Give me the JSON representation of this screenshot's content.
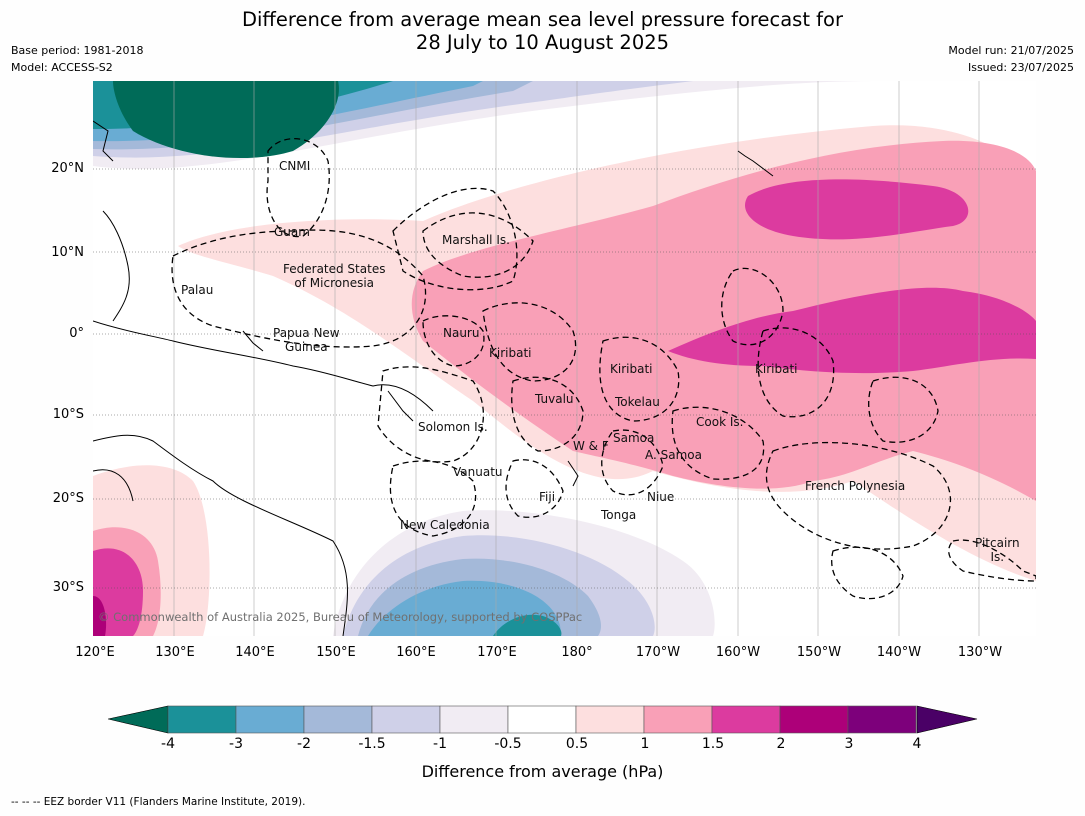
{
  "title": {
    "line1": "Difference from average mean sea level pressure forecast for",
    "line2": "28 July to 10 August 2025"
  },
  "meta_left": {
    "base_period": "Base period: 1981-2018",
    "model": "Model: ACCESS-S2"
  },
  "meta_right": {
    "model_run": "Model run: 21/07/2025",
    "issued": "Issued: 23/07/2025"
  },
  "latitude_labels": [
    "20°N",
    "10°N",
    "0°",
    "10°S",
    "20°S",
    "30°S"
  ],
  "longitude_labels": [
    "120°E",
    "130°E",
    "140°E",
    "150°E",
    "160°E",
    "170°E",
    "180°",
    "170°W",
    "160°W",
    "150°W",
    "140°W",
    "130°W"
  ],
  "regions": {
    "cnmi": "CNMI",
    "guam": "Guam",
    "marshall": "Marshall Is.",
    "fsm_line1": "Federated States",
    "fsm_line2": "of Micronesia",
    "palau": "Palau",
    "png_line1": "Papua New",
    "png_line2": "Guinea",
    "nauru": "Nauru",
    "kiribati_w": "Kiribati",
    "kiribati_c": "Kiribati",
    "kiribati_e": "Kiribati",
    "tuvalu": "Tuvalu",
    "tokelau": "Tokelau",
    "solomon": "Solomon Is.",
    "samoa": "Samoa",
    "wf": "W & F",
    "asamoa": "A. Samoa",
    "cook": "Cook Is.",
    "vanuatu": "Vanuatu",
    "fiji": "Fiji",
    "niue": "Niue",
    "tonga": "Tonga",
    "new_caledonia": "New Caledonia",
    "french_polynesia": "French Polynesia",
    "pitcairn_line1": "Pitcairn",
    "pitcairn_line2": "Is."
  },
  "copyright": "© Commonwealth of Australia 2025, Bureau of Meteorology, supported by COSPPac",
  "colorbar": {
    "label": "Difference from average (hPa)",
    "ticks": [
      "-4",
      "-3",
      "-2",
      "-1.5",
      "-1",
      "-0.5",
      "0.5",
      "1",
      "1.5",
      "2",
      "3",
      "4"
    ],
    "under_color": "#006b58",
    "over_color": "#4a0066",
    "bin_colors": [
      "#1b9199",
      "#69acd3",
      "#a4b9d9",
      "#cfd0e8",
      "#f1ecf3",
      "#ffffff",
      "#fddfdf",
      "#f9a0b7",
      "#dc3b9f",
      "#ad0079",
      "#7d007b"
    ]
  },
  "footnote": "--  --  -- EEZ border V11 (Flanders Marine Institute, 2019)."
}
